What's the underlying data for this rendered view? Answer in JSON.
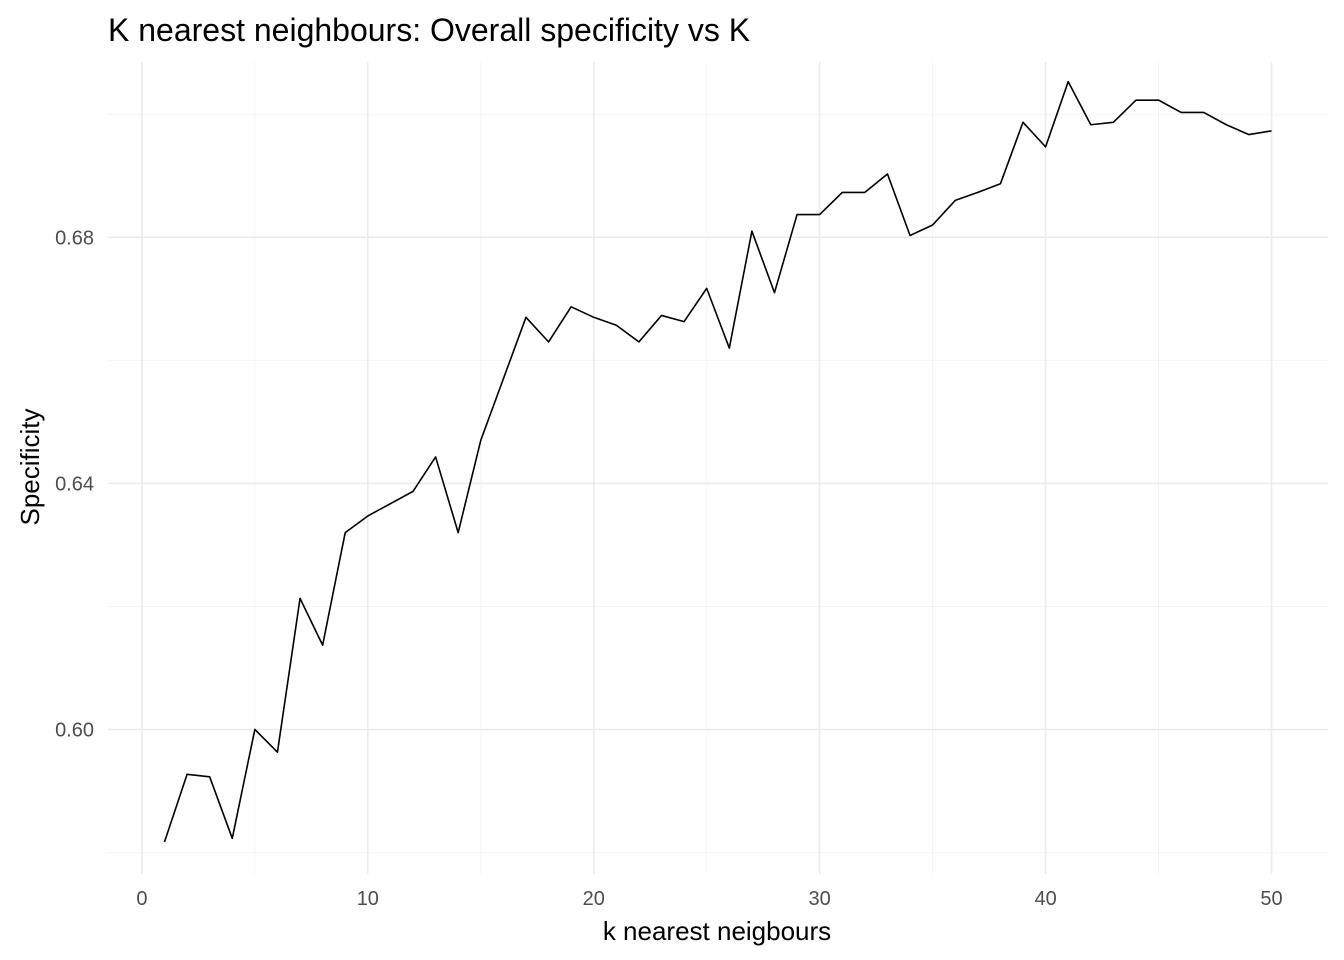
{
  "chart_data": {
    "type": "line",
    "title": "K nearest neighbours: Overall specificity vs K",
    "xlabel": "k nearest neigbours",
    "ylabel": "Specificity",
    "xlim": [
      -1.5,
      52.5
    ],
    "ylim": [
      0.5765,
      0.7085
    ],
    "x_major_ticks": [
      0,
      10,
      20,
      30,
      40,
      50
    ],
    "x_minor_ticks": [
      5,
      15,
      25,
      35,
      45
    ],
    "y_major_ticks": [
      0.6,
      0.64,
      0.68
    ],
    "y_minor_ticks": [
      0.58,
      0.62,
      0.66,
      0.7
    ],
    "x_tick_labels": [
      "0",
      "10",
      "20",
      "30",
      "40",
      "50"
    ],
    "y_tick_labels": [
      "0.60",
      "0.64",
      "0.68"
    ],
    "grid": true,
    "legend": "none",
    "line_color": "#000000",
    "x": [
      1,
      2,
      3,
      4,
      5,
      6,
      7,
      8,
      9,
      10,
      11,
      12,
      13,
      14,
      15,
      16,
      17,
      18,
      19,
      20,
      21,
      22,
      23,
      24,
      25,
      26,
      27,
      28,
      29,
      30,
      31,
      32,
      33,
      34,
      35,
      36,
      37,
      38,
      39,
      40,
      41,
      42,
      43,
      44,
      45,
      46,
      47,
      48,
      49,
      50
    ],
    "series": [
      {
        "values": [
          0.5817,
          0.5927,
          0.5923,
          0.5823,
          0.6,
          0.5963,
          0.6213,
          0.6137,
          0.632,
          0.6347,
          0.6367,
          0.6387,
          0.6443,
          0.632,
          0.647,
          0.657,
          0.667,
          0.663,
          0.6687,
          0.667,
          0.6657,
          0.663,
          0.6673,
          0.6663,
          0.6717,
          0.662,
          0.681,
          0.671,
          0.6837,
          0.6837,
          0.6873,
          0.6873,
          0.6903,
          0.6803,
          0.682,
          0.686,
          0.6873,
          0.6887,
          0.6987,
          0.6947,
          0.7053,
          0.6983,
          0.6987,
          0.7023,
          0.7023,
          0.7003,
          0.7003,
          0.6983,
          0.6967,
          0.6973
        ]
      }
    ]
  }
}
